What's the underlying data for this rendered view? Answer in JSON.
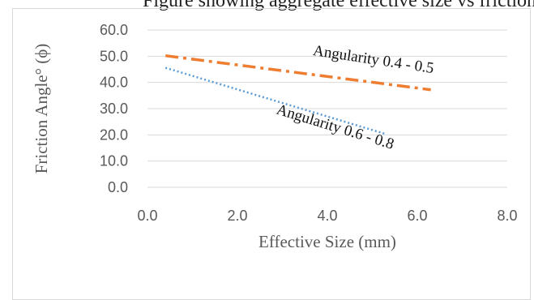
{
  "top_text": "Figure showing aggregate effective size vs friction angle by angularity",
  "chart_data": {
    "type": "line",
    "xlabel": "Effective Size (mm)",
    "ylabel": "Friction Angle° (ϕ)",
    "xlim": [
      0,
      8
    ],
    "ylim": [
      0,
      60
    ],
    "x_ticks": [
      "0.0",
      "2.0",
      "4.0",
      "6.0",
      "8.0"
    ],
    "y_ticks": [
      "0.0",
      "10.0",
      "20.0",
      "30.0",
      "40.0",
      "50.0",
      "60.0"
    ],
    "grid": true,
    "legend": "none",
    "series": [
      {
        "label": "Angularity 0.4 - 0.5",
        "x": [
          0.4,
          6.3
        ],
        "y": [
          50.2,
          37.2
        ],
        "color": "#ED7D31",
        "style": "dash-dot"
      },
      {
        "label": "Angularity 0.6 - 0.8",
        "x": [
          0.4,
          5.3
        ],
        "y": [
          45.6,
          20.3
        ],
        "color": "#5B9BD5",
        "style": "dotted"
      }
    ],
    "annotations": [
      {
        "text": "Angularity 0.4 - 0.5",
        "series": 0
      },
      {
        "text": "Angularity 0.6 - 0.8",
        "series": 1
      }
    ]
  }
}
